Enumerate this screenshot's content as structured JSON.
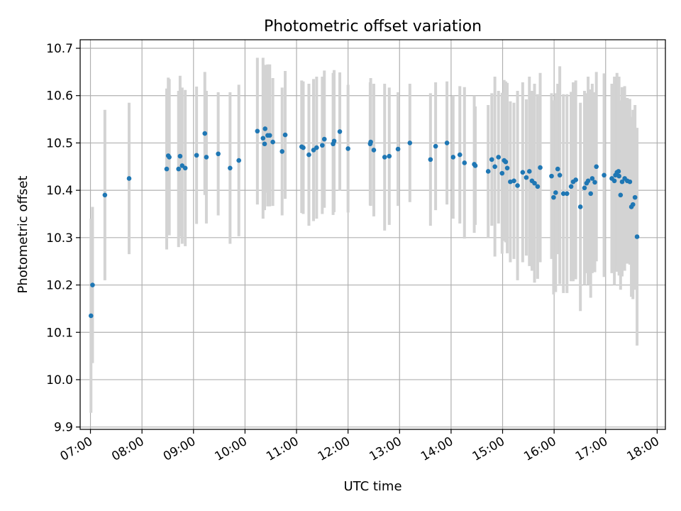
{
  "chart_data": {
    "type": "scatter",
    "title": "Photometric offset variation",
    "xlabel": "UTC time",
    "ylabel": "Photometric offset",
    "x_unit": "hours UTC",
    "xlim": [
      6.8,
      18.16
    ],
    "ylim": [
      9.895,
      10.718
    ],
    "x_ticks": [
      7,
      8,
      9,
      10,
      11,
      12,
      13,
      14,
      15,
      16,
      17,
      18
    ],
    "x_tick_labels": [
      "07:00",
      "08:00",
      "09:00",
      "10:00",
      "11:00",
      "12:00",
      "13:00",
      "14:00",
      "15:00",
      "16:00",
      "17:00",
      "18:00"
    ],
    "y_ticks": [
      9.9,
      10.0,
      10.1,
      10.2,
      10.3,
      10.4,
      10.5,
      10.6,
      10.7
    ],
    "y_tick_labels": [
      "9.9",
      "10.0",
      "10.1",
      "10.2",
      "10.3",
      "10.4",
      "10.5",
      "10.6",
      "10.7"
    ],
    "grid": true,
    "x_tick_rotation": 30,
    "colors": {
      "points": "#1f77b4",
      "error_bars": "#d3d3d3",
      "grid": "#b0b0b0"
    },
    "series": [
      {
        "x": [
          7.01,
          7.04,
          7.28,
          7.75,
          8.48,
          8.51,
          8.53,
          8.71,
          8.74,
          8.78,
          8.84,
          9.06,
          9.22,
          9.25,
          9.48,
          9.71,
          9.88,
          10.24,
          10.35,
          10.38,
          10.39,
          10.44,
          10.48,
          10.54,
          10.72,
          10.78,
          11.1,
          11.13,
          11.24,
          11.33,
          11.39,
          11.5,
          11.54,
          11.71,
          11.73,
          11.84,
          12.0,
          12.43,
          12.44,
          12.5,
          12.71,
          12.8,
          12.97,
          13.2,
          13.6,
          13.7,
          13.92,
          14.04,
          14.17,
          14.26,
          14.45,
          14.47,
          14.72,
          14.79,
          14.85,
          14.92,
          14.99,
          15.03,
          15.06,
          15.09,
          15.15,
          15.22,
          15.29,
          15.39,
          15.46,
          15.52,
          15.57,
          15.62,
          15.68,
          15.73,
          15.95,
          15.99,
          16.03,
          16.07,
          16.11,
          16.18,
          16.25,
          16.33,
          16.37,
          16.42,
          16.51,
          16.59,
          16.63,
          16.66,
          16.71,
          16.74,
          16.79,
          16.82,
          16.97,
          17.12,
          17.17,
          17.19,
          17.22,
          17.25,
          17.26,
          17.29,
          17.32,
          17.37,
          17.42,
          17.47,
          17.5,
          17.53,
          17.57,
          17.61
        ],
        "y": [
          10.135,
          10.2,
          10.39,
          10.425,
          10.445,
          10.473,
          10.47,
          10.445,
          10.472,
          10.452,
          10.447,
          10.474,
          10.52,
          10.47,
          10.477,
          10.447,
          10.463,
          10.525,
          10.51,
          10.498,
          10.53,
          10.516,
          10.516,
          10.502,
          10.482,
          10.517,
          10.492,
          10.49,
          10.475,
          10.485,
          10.49,
          10.495,
          10.508,
          10.498,
          10.504,
          10.524,
          10.488,
          10.498,
          10.502,
          10.485,
          10.47,
          10.472,
          10.487,
          10.5,
          10.465,
          10.493,
          10.5,
          10.47,
          10.475,
          10.458,
          10.455,
          10.452,
          10.44,
          10.465,
          10.45,
          10.47,
          10.436,
          10.463,
          10.46,
          10.447,
          10.418,
          10.42,
          10.41,
          10.438,
          10.427,
          10.44,
          10.42,
          10.415,
          10.408,
          10.448,
          10.43,
          10.385,
          10.395,
          10.445,
          10.432,
          10.393,
          10.393,
          10.408,
          10.418,
          10.422,
          10.365,
          10.405,
          10.415,
          10.42,
          10.393,
          10.425,
          10.417,
          10.45,
          10.432,
          10.425,
          10.42,
          10.432,
          10.438,
          10.44,
          10.43,
          10.39,
          10.418,
          10.425,
          10.42,
          10.418,
          10.365,
          10.37,
          10.385,
          10.302
        ],
        "err": [
          0.205,
          0.165,
          0.18,
          0.16,
          0.17,
          0.165,
          0.165,
          0.165,
          0.17,
          0.165,
          0.165,
          0.145,
          0.13,
          0.14,
          0.13,
          0.16,
          0.16,
          0.155,
          0.17,
          0.14,
          0.135,
          0.15,
          0.15,
          0.135,
          0.135,
          0.135,
          0.14,
          0.14,
          0.15,
          0.15,
          0.15,
          0.145,
          0.145,
          0.15,
          0.15,
          0.125,
          0.135,
          0.13,
          0.135,
          0.14,
          0.155,
          0.145,
          0.12,
          0.125,
          0.14,
          0.135,
          0.13,
          0.13,
          0.145,
          0.16,
          0.145,
          0.125,
          0.14,
          0.14,
          0.19,
          0.14,
          0.17,
          0.17,
          0.17,
          0.18,
          0.17,
          0.165,
          0.2,
          0.19,
          0.165,
          0.2,
          0.19,
          0.21,
          0.195,
          0.2,
          0.175,
          0.205,
          0.21,
          0.18,
          0.23,
          0.21,
          0.21,
          0.2,
          0.21,
          0.21,
          0.22,
          0.205,
          0.19,
          0.22,
          0.22,
          0.2,
          0.19,
          0.2,
          0.215,
          0.2,
          0.22,
          0.2,
          0.21,
          0.2,
          0.21,
          0.2,
          0.2,
          0.195,
          0.175,
          0.175,
          0.19,
          0.2,
          0.195,
          0.23
        ]
      }
    ]
  }
}
